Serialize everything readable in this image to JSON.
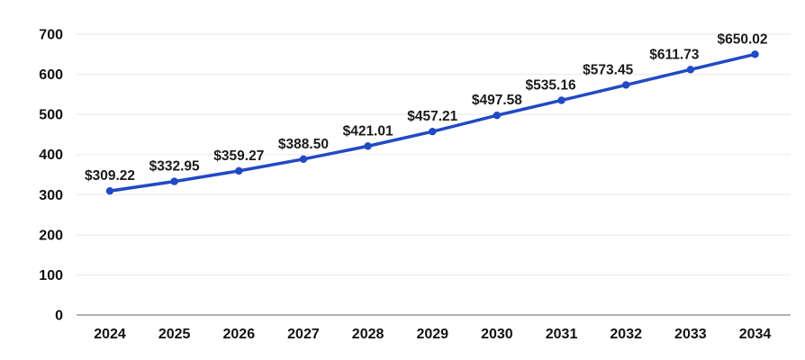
{
  "chart_data": {
    "type": "line",
    "title": "",
    "xlabel": "",
    "ylabel": "",
    "categories": [
      "2024",
      "2025",
      "2026",
      "2027",
      "2028",
      "2029",
      "2030",
      "2031",
      "2032",
      "2033",
      "2034"
    ],
    "series": [
      {
        "name": "value",
        "values": [
          309.22,
          332.95,
          359.27,
          388.5,
          421.01,
          457.21,
          497.58,
          535.16,
          573.45,
          611.73,
          650.02
        ],
        "point_labels": [
          "$309.22",
          "$332.95",
          "$359.27",
          "$388.50",
          "$421.01",
          "$457.21",
          "$497.58",
          "$535.16",
          "$573.45",
          "$611.73",
          "$650.02"
        ],
        "color": "#2149c4"
      }
    ],
    "y_ticks": [
      0,
      100,
      200,
      300,
      400,
      500,
      600,
      700
    ],
    "ylim": [
      0,
      700
    ],
    "grid": true,
    "legend": "none",
    "layout": {
      "plot_left": 85,
      "plot_right": 878,
      "plot_top": 38,
      "plot_bottom": 350,
      "first_point_x": 122,
      "point_step_x": 71.65,
      "x_label_baseline_y": 376,
      "y_label_right_x": 70,
      "point_label_dy": -12,
      "point_label_dx": [
        0,
        0,
        0,
        0,
        0,
        0,
        0,
        -12,
        -20,
        -18,
        -14
      ],
      "grid_color": "#efefef",
      "axis_color": "#b0b0b0",
      "text_color": "#111111",
      "background": "#ffffff",
      "marker_radius": 4.2,
      "line_width": 3.5
    }
  }
}
